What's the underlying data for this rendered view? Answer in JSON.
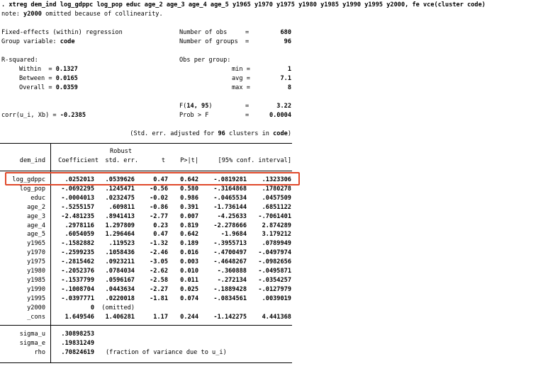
{
  "command": ". xtreg dem_ind log_gdppc log_pop educ age_2 age_3 age_4 age_5 y1965 y1970 y1975 y1980 y1985 y1990 y1995 y2000, fe vce(cluster code)",
  "note_prefix": "note: ",
  "note_var": "y2000",
  "note_suffix": " omitted because of collinearity.",
  "model": {
    "title": "Fixed-effects (within) regression",
    "group_label": "Group variable: ",
    "group_var": "code",
    "rsq_label": "R-squared:",
    "within_label": "Within  = ",
    "within": "0.1327",
    "between_label": "Between = ",
    "between": "0.0165",
    "overall_label": "Overall = ",
    "overall": "0.0359",
    "corr_label": "corr(u_i, Xb) = ",
    "corr": "-0.2385"
  },
  "stats": {
    "nobs_label": "Number of obs",
    "eq": "=",
    "nobs": "680",
    "ngroups_label": "Number of groups",
    "ngroups": "96",
    "per_group_label": "Obs per group:",
    "min_label": "min =",
    "min": "1",
    "avg_label": "avg =",
    "avg": "7.1",
    "max_label": "max =",
    "max": "8",
    "f_label_pre": "F(",
    "f_df": "14, 95",
    "f_label_post": ")",
    "f": "3.22",
    "prob_label": "Prob > F",
    "prob": "0.0004"
  },
  "se_note": {
    "pre": "(Std. err. adjusted for ",
    "n": "96",
    "mid": " clusters in ",
    "var": "code",
    "post": ")"
  },
  "table": {
    "depvar": "dem_ind",
    "robust": "Robust",
    "headers": [
      "Coefficient",
      "std. err.",
      "t",
      "P>|t|",
      "[95% conf. interval]"
    ],
    "rows": [
      [
        "log_gdppc",
        ".0252013",
        ".0539626",
        "0.47",
        "0.642",
        "-.0819281",
        ".1323306"
      ],
      [
        "log_pop",
        "-.0692295",
        ".1245471",
        "-0.56",
        "0.580",
        "-.3164868",
        ".1780278"
      ],
      [
        "educ",
        "-.0004013",
        ".0232475",
        "-0.02",
        "0.986",
        "-.0465534",
        ".0457509"
      ],
      [
        "age_2",
        "-.5255157",
        ".609811",
        "-0.86",
        "0.391",
        "-1.736144",
        ".6851122"
      ],
      [
        "age_3",
        "-2.481235",
        ".8941413",
        "-2.77",
        "0.007",
        "-4.25633",
        "-.7061401"
      ],
      [
        "age_4",
        ".2978116",
        "1.297809",
        "0.23",
        "0.819",
        "-2.278666",
        "2.874289"
      ],
      [
        "age_5",
        ".6054059",
        "1.296464",
        "0.47",
        "0.642",
        "-1.9684",
        "3.179212"
      ],
      [
        "y1965",
        "-.1582882",
        ".119523",
        "-1.32",
        "0.189",
        "-.3955713",
        ".0789949"
      ],
      [
        "y1970",
        "-.2599235",
        ".1058436",
        "-2.46",
        "0.016",
        "-.4700497",
        "-.0497974"
      ],
      [
        "y1975",
        "-.2815462",
        ".0923211",
        "-3.05",
        "0.003",
        "-.4648267",
        "-.0982656"
      ],
      [
        "y1980",
        "-.2052376",
        ".0784034",
        "-2.62",
        "0.010",
        "-.360888",
        "-.0495871"
      ],
      [
        "y1985",
        "-.1537799",
        ".0596167",
        "-2.58",
        "0.011",
        "-.272134",
        "-.0354257"
      ],
      [
        "y1990",
        "-.1008704",
        ".0443634",
        "-2.27",
        "0.025",
        "-.1889428",
        "-.0127979"
      ],
      [
        "y1995",
        "-.0397771",
        ".0220018",
        "-1.81",
        "0.074",
        "-.0834561",
        ".0039019"
      ],
      [
        "y2000",
        "0",
        "(omitted)",
        "",
        "",
        "",
        ""
      ],
      [
        "_cons",
        "1.649546",
        "1.406281",
        "1.17",
        "0.244",
        "-1.142275",
        "4.441368"
      ]
    ],
    "highlighted_row": "log_gdppc",
    "highlight_color": "#e0482a",
    "sigma": [
      [
        "sigma_u",
        ".30898253",
        ""
      ],
      [
        "sigma_e",
        ".19831249",
        ""
      ],
      [
        "rho",
        ".70824619",
        "(fraction of variance due to u_i)"
      ]
    ]
  }
}
